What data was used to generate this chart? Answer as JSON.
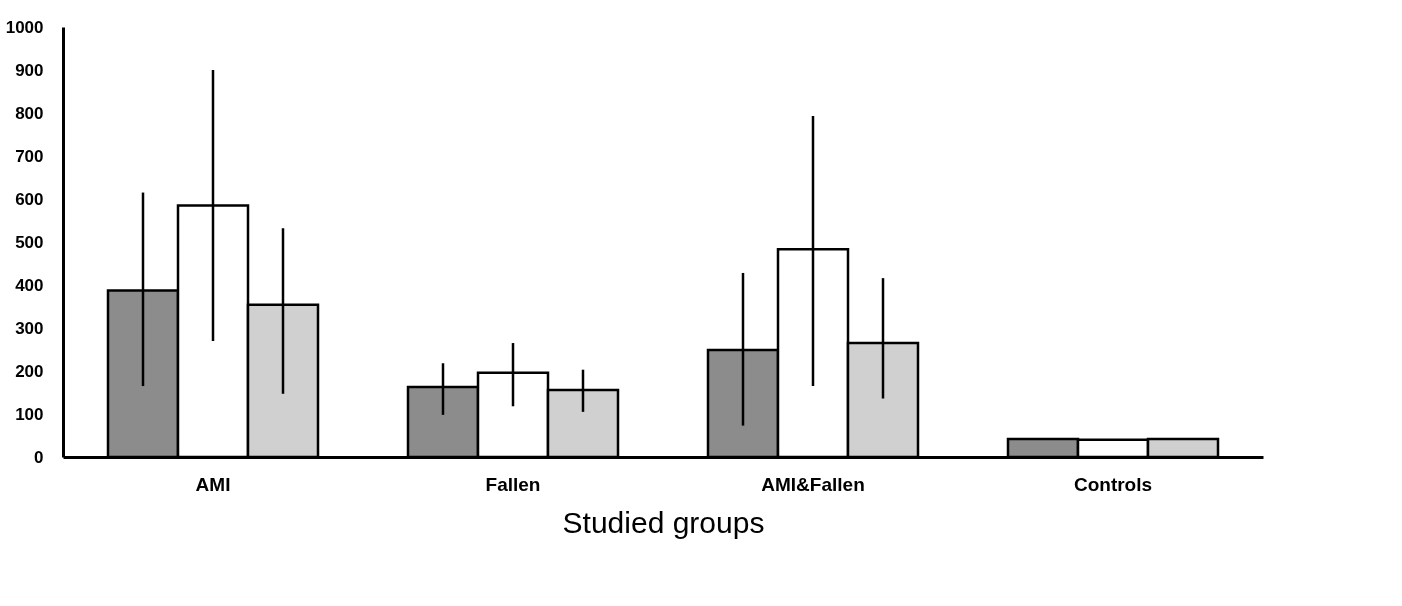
{
  "chart_data": {
    "type": "bar",
    "xlabel": "Studied groups",
    "categories": [
      "AMI",
      "Fallen",
      "AMI&Fallen",
      "Controls"
    ],
    "series": [
      {
        "color": "#8c8c8c",
        "values": [
          387,
          163,
          249,
          42
        ],
        "errors": [
          [
            165,
            615
          ],
          [
            98,
            218
          ],
          [
            73,
            428
          ],
          null
        ]
      },
      {
        "color": "#ffffff",
        "values": [
          585,
          196,
          483,
          40
        ],
        "errors": [
          [
            270,
            900
          ],
          [
            118,
            265
          ],
          [
            165,
            793
          ],
          null
        ]
      },
      {
        "color": "#d0d0d0",
        "values": [
          354,
          156,
          265,
          42
        ],
        "errors": [
          [
            147,
            532
          ],
          [
            105,
            203
          ],
          [
            136,
            416
          ],
          null
        ]
      }
    ],
    "ylim": [
      0,
      1000
    ],
    "yticks": [
      0,
      100,
      200,
      300,
      400,
      500,
      600,
      700,
      800,
      900,
      1000
    ],
    "grid": false,
    "legend": false
  }
}
